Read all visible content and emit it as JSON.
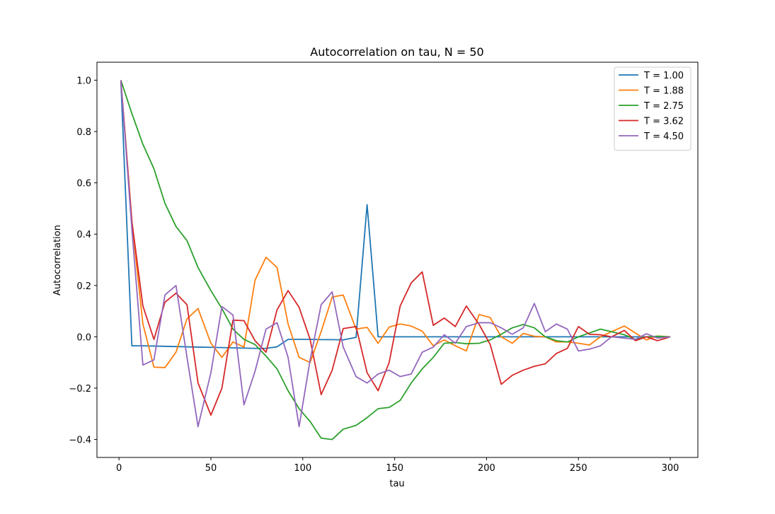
{
  "chart_data": {
    "type": "line",
    "title": "Autocorrelation on tau, N = 50",
    "xlabel": "tau",
    "ylabel": "Autocorrelation",
    "xlim": [
      -12,
      315
    ],
    "ylim": [
      -0.47,
      1.07
    ],
    "xticks": [
      0,
      50,
      100,
      150,
      200,
      250,
      300
    ],
    "yticks": [
      -0.4,
      -0.2,
      0.0,
      0.2,
      0.4,
      0.6,
      0.8,
      1.0
    ],
    "xtick_labels": [
      "0",
      "50",
      "100",
      "150",
      "200",
      "250",
      "300"
    ],
    "ytick_labels": [
      "−0.4",
      "−0.2",
      "0.0",
      "0.2",
      "0.4",
      "0.6",
      "0.8",
      "1.0"
    ],
    "grid": false,
    "legend_position": "top-right",
    "series": [
      {
        "name": "T = 1.00",
        "color": "#1f77b4",
        "x": [
          1,
          7,
          13,
          19,
          25,
          31,
          37,
          43,
          50,
          56,
          62,
          68,
          74,
          80,
          86,
          92,
          98,
          104,
          110,
          116,
          122,
          129,
          135,
          141,
          147,
          153,
          159,
          165,
          171,
          177,
          183,
          189,
          196,
          202,
          208,
          214,
          220,
          226,
          232,
          238,
          244,
          250,
          256,
          262,
          268,
          275,
          281,
          287,
          293,
          300
        ],
        "y": [
          1.0,
          -0.035,
          -0.035,
          -0.036,
          -0.037,
          -0.038,
          -0.039,
          -0.04,
          -0.041,
          -0.042,
          -0.043,
          -0.044,
          -0.045,
          -0.045,
          -0.039,
          -0.01,
          -0.01,
          -0.01,
          -0.011,
          -0.011,
          -0.012,
          -0.002,
          0.515,
          0.0,
          0.0,
          0.0,
          0.0,
          0.0,
          0.0,
          0.0,
          0.0,
          0.0,
          0.0,
          0.0,
          0.0,
          0.0,
          0.0,
          0.0,
          0.0,
          0.0,
          0.0,
          0.0,
          0.0,
          0.0,
          0.0,
          0.0,
          0.0,
          0.0,
          0.0,
          0.0
        ]
      },
      {
        "name": "T = 1.88",
        "color": "#ff7f0e",
        "x": [
          1,
          7,
          13,
          19,
          25,
          31,
          37,
          43,
          50,
          56,
          62,
          68,
          74,
          80,
          86,
          92,
          98,
          104,
          110,
          116,
          122,
          129,
          135,
          141,
          147,
          153,
          159,
          165,
          171,
          177,
          183,
          189,
          196,
          202,
          208,
          214,
          220,
          226,
          232,
          238,
          244,
          250,
          256,
          262,
          268,
          275,
          281,
          287,
          293,
          300
        ],
        "y": [
          1.0,
          0.45,
          0.05,
          -0.118,
          -0.12,
          -0.06,
          0.07,
          0.11,
          -0.025,
          -0.08,
          -0.02,
          -0.04,
          0.22,
          0.31,
          0.27,
          0.05,
          -0.08,
          -0.1,
          0.02,
          0.155,
          0.163,
          0.03,
          0.037,
          -0.025,
          0.038,
          0.05,
          0.042,
          0.022,
          -0.035,
          -0.012,
          -0.035,
          -0.055,
          0.087,
          0.075,
          0.0,
          -0.025,
          0.013,
          0.002,
          0.0,
          -0.02,
          -0.02,
          -0.025,
          -0.032,
          0.0,
          0.02,
          0.042,
          0.015,
          -0.012,
          0.003,
          0.0
        ]
      },
      {
        "name": "T = 2.75",
        "color": "#2ca02c",
        "x": [
          1,
          7,
          13,
          19,
          25,
          31,
          37,
          43,
          50,
          56,
          62,
          68,
          74,
          80,
          86,
          92,
          98,
          104,
          110,
          116,
          122,
          129,
          135,
          141,
          147,
          153,
          159,
          165,
          171,
          177,
          183,
          189,
          196,
          202,
          208,
          214,
          220,
          226,
          232,
          238,
          244,
          250,
          256,
          262,
          268,
          275,
          281,
          287,
          293,
          300
        ],
        "y": [
          1.0,
          0.87,
          0.75,
          0.655,
          0.52,
          0.43,
          0.375,
          0.27,
          0.18,
          0.11,
          0.03,
          -0.01,
          -0.03,
          -0.075,
          -0.125,
          -0.21,
          -0.28,
          -0.33,
          -0.395,
          -0.4,
          -0.36,
          -0.345,
          -0.315,
          -0.28,
          -0.275,
          -0.248,
          -0.18,
          -0.125,
          -0.08,
          -0.025,
          -0.022,
          -0.027,
          -0.025,
          -0.012,
          0.01,
          0.035,
          0.048,
          0.035,
          0.0,
          -0.015,
          -0.02,
          0.0,
          0.015,
          0.03,
          0.02,
          0.008,
          -0.01,
          0.0,
          0.002,
          0.0
        ]
      },
      {
        "name": "T = 3.62",
        "color": "#d62728",
        "x": [
          1,
          7,
          13,
          19,
          25,
          31,
          37,
          43,
          50,
          56,
          62,
          68,
          74,
          80,
          86,
          92,
          98,
          104,
          110,
          116,
          122,
          129,
          135,
          141,
          147,
          153,
          159,
          165,
          171,
          177,
          183,
          189,
          196,
          202,
          208,
          214,
          220,
          226,
          232,
          238,
          244,
          250,
          256,
          262,
          268,
          275,
          281,
          287,
          293,
          300
        ],
        "y": [
          1.0,
          0.45,
          0.12,
          -0.01,
          0.135,
          0.17,
          0.125,
          -0.18,
          -0.305,
          -0.2,
          0.065,
          0.063,
          -0.015,
          -0.06,
          0.105,
          0.18,
          0.115,
          -0.01,
          -0.225,
          -0.13,
          0.032,
          0.04,
          -0.14,
          -0.21,
          -0.1,
          0.12,
          0.21,
          0.253,
          0.045,
          0.073,
          0.04,
          0.12,
          0.048,
          -0.03,
          -0.185,
          -0.15,
          -0.13,
          -0.115,
          -0.105,
          -0.065,
          -0.045,
          0.04,
          0.01,
          0.008,
          0.0,
          0.025,
          -0.015,
          0.0,
          -0.015,
          0.0
        ]
      },
      {
        "name": "T = 4.50",
        "color": "#9467bd",
        "x": [
          1,
          7,
          13,
          19,
          25,
          31,
          37,
          43,
          50,
          56,
          62,
          68,
          74,
          80,
          86,
          92,
          98,
          104,
          110,
          116,
          122,
          129,
          135,
          141,
          147,
          153,
          159,
          165,
          171,
          177,
          183,
          189,
          196,
          202,
          208,
          214,
          220,
          226,
          232,
          238,
          244,
          250,
          256,
          262,
          268,
          275,
          281,
          287,
          293,
          300
        ],
        "y": [
          1.0,
          0.42,
          -0.11,
          -0.09,
          0.163,
          0.2,
          -0.08,
          -0.35,
          -0.14,
          0.118,
          0.085,
          -0.265,
          -0.135,
          0.03,
          0.055,
          -0.08,
          -0.35,
          -0.09,
          0.125,
          0.175,
          -0.04,
          -0.155,
          -0.18,
          -0.145,
          -0.13,
          -0.155,
          -0.145,
          -0.06,
          -0.04,
          0.008,
          -0.025,
          0.04,
          0.055,
          0.055,
          0.035,
          0.01,
          0.035,
          0.13,
          0.02,
          0.05,
          0.03,
          -0.055,
          -0.048,
          -0.035,
          0.0,
          -0.005,
          -0.01,
          0.012,
          -0.005,
          0.0
        ]
      }
    ]
  }
}
